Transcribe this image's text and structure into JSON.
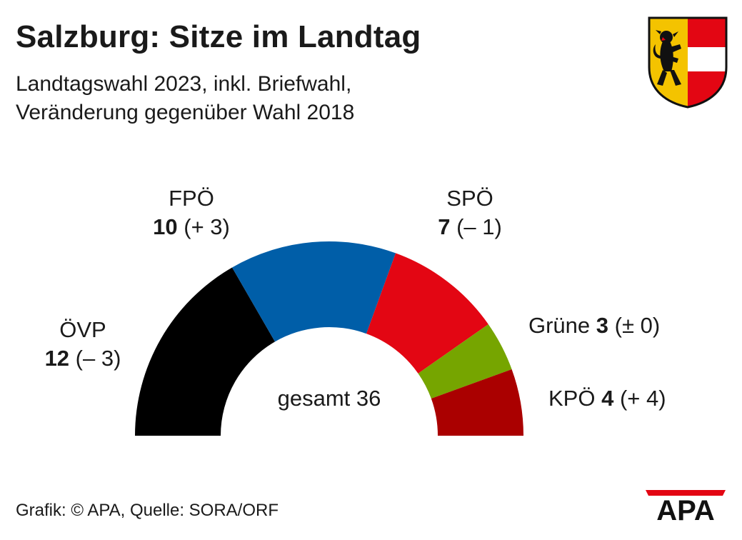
{
  "header": {
    "title": "Salzburg: Sitze im Landtag",
    "subtitle_line1": "Landtagswahl 2023, inkl. Briefwahl,",
    "subtitle_line2": "Veränderung gegenüber Wahl 2018"
  },
  "crest": {
    "name": "salzburg-coat-of-arms-icon",
    "colors": {
      "gold": "#f4c300",
      "red": "#e30613",
      "white": "#ffffff",
      "black": "#111111"
    }
  },
  "chart_data": {
    "type": "pie",
    "subtype": "parliament-semicircle",
    "title": "Salzburg: Sitze im Landtag",
    "total_label": "gesamt 36",
    "total": 36,
    "series": [
      {
        "name": "ÖVP",
        "seats": 12,
        "change": "(– 3)",
        "color": "#000000"
      },
      {
        "name": "FPÖ",
        "seats": 10,
        "change": "(+ 3)",
        "color": "#005ea8"
      },
      {
        "name": "SPÖ",
        "seats": 7,
        "change": "(– 1)",
        "color": "#e30613"
      },
      {
        "name": "Grüne",
        "seats": 3,
        "change": "(± 0)",
        "color": "#76a500"
      },
      {
        "name": "KPÖ",
        "seats": 4,
        "change": "(+ 4)",
        "color": "#aa0000"
      }
    ]
  },
  "footer": {
    "source": "Grafik: © APA, Quelle: SORA/ORF"
  },
  "logo": {
    "text": "APA",
    "accent_color": "#e30613"
  }
}
